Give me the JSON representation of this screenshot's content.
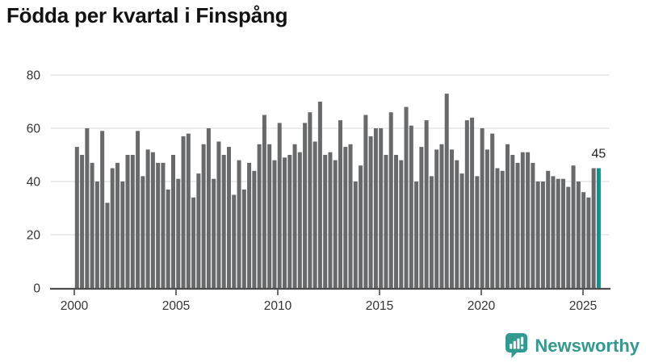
{
  "title": "Födda per kvartal i Finspång",
  "annotation": {
    "latest_value_label": "45"
  },
  "branding": {
    "logo_text": "Newsworthy",
    "logo_icon": "speech-bubble-bar-chart-icon"
  },
  "colors": {
    "bar": "#67696b",
    "highlight": "#089790",
    "grid": "#e1e1e1",
    "axis": "#4d4d4d",
    "tick_text": "#333333",
    "title_text": "#121212",
    "annotation_text": "#222222",
    "logo": "#31998e"
  },
  "chart_data": {
    "type": "bar",
    "title": "Födda per kvartal i Finspång",
    "xlabel": "",
    "ylabel": "",
    "period": "quarterly",
    "start_period": "2000 Q1",
    "x_ticks": [
      "2000",
      "2005",
      "2010",
      "2015",
      "2020",
      "2025"
    ],
    "y_ticks": [
      0,
      20,
      40,
      60,
      80
    ],
    "ylim": [
      0,
      84
    ],
    "grid": "horizontal",
    "legend": "none",
    "highlight_index": 103,
    "annotation": {
      "index": 103,
      "text": "45"
    },
    "values": [
      53,
      50,
      60,
      47,
      40,
      59,
      32,
      45,
      47,
      40,
      50,
      50,
      59,
      42,
      52,
      51,
      47,
      47,
      37,
      50,
      41,
      57,
      58,
      34,
      43,
      54,
      60,
      41,
      55,
      50,
      53,
      35,
      48,
      37,
      47,
      44,
      54,
      65,
      54,
      48,
      62,
      49,
      50,
      54,
      51,
      62,
      66,
      55,
      70,
      50,
      51,
      48,
      63,
      53,
      54,
      40,
      46,
      65,
      57,
      60,
      60,
      50,
      66,
      50,
      48,
      68,
      61,
      40,
      53,
      63,
      42,
      52,
      54,
      73,
      52,
      48,
      43,
      63,
      64,
      42,
      60,
      52,
      58,
      45,
      44,
      54,
      50,
      47,
      51,
      51,
      47,
      40,
      40,
      44,
      42,
      41,
      41,
      38,
      46,
      40,
      36,
      34,
      45,
      45
    ]
  }
}
